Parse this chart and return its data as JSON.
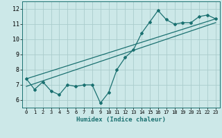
{
  "title": "",
  "xlabel": "Humidex (Indice chaleur)",
  "ylabel": "",
  "bg_color": "#cce8e8",
  "line_color": "#1a7070",
  "grid_color": "#aacccc",
  "spine_color": "#1a7070",
  "xlim": [
    -0.5,
    23.5
  ],
  "ylim": [
    5.5,
    12.5
  ],
  "xticks": [
    0,
    1,
    2,
    3,
    4,
    5,
    6,
    7,
    8,
    9,
    10,
    11,
    12,
    13,
    14,
    15,
    16,
    17,
    18,
    19,
    20,
    21,
    22,
    23
  ],
  "yticks": [
    6,
    7,
    8,
    9,
    10,
    11,
    12
  ],
  "data_x": [
    0,
    1,
    2,
    3,
    4,
    5,
    6,
    7,
    8,
    9,
    10,
    11,
    12,
    13,
    14,
    15,
    16,
    17,
    18,
    19,
    20,
    21,
    22,
    23
  ],
  "data_y": [
    7.4,
    6.7,
    7.2,
    6.6,
    6.35,
    7.0,
    6.9,
    7.0,
    7.0,
    5.8,
    6.5,
    8.0,
    8.8,
    9.3,
    10.4,
    11.15,
    11.9,
    11.3,
    11.0,
    11.1,
    11.1,
    11.5,
    11.6,
    11.35
  ],
  "line2_x": [
    0,
    23
  ],
  "line2_y": [
    7.4,
    11.35
  ],
  "trend_x": [
    0,
    23
  ],
  "trend_y": [
    6.9,
    11.1
  ]
}
